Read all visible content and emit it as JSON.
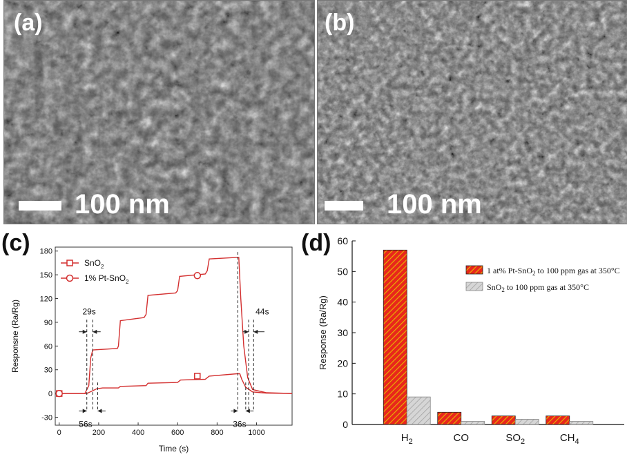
{
  "panels": {
    "a": {
      "label": "(a)",
      "scale": "100 nm"
    },
    "b": {
      "label": "(b)",
      "scale": "100 nm"
    },
    "c": {
      "label": "(c)"
    },
    "d": {
      "label": "(d)"
    }
  },
  "chart_data": [
    {
      "type": "line",
      "xlabel": "Time (s)",
      "ylabel": "Responsne (Ra/Rg)",
      "xlim": [
        -20,
        1180
      ],
      "ylim": [
        -40,
        185
      ],
      "xticks": [
        0,
        200,
        400,
        600,
        800,
        1000
      ],
      "yticks": [
        -30,
        0,
        30,
        60,
        90,
        120,
        150,
        180
      ],
      "series": [
        {
          "name": "SnO2",
          "color": "#d32f2f",
          "marker": "square",
          "points": [
            [
              0,
              0
            ],
            [
              140,
              0
            ],
            [
              165,
              3
            ],
            [
              190,
              6
            ],
            [
              220,
              7
            ],
            [
              300,
              7
            ],
            [
              310,
              9
            ],
            [
              440,
              10
            ],
            [
              450,
              13
            ],
            [
              600,
              14
            ],
            [
              615,
              17
            ],
            [
              740,
              18
            ],
            [
              760,
              22
            ],
            [
              900,
              25
            ],
            [
              915,
              25
            ],
            [
              925,
              18
            ],
            [
              945,
              8
            ],
            [
              980,
              2
            ],
            [
              1050,
              0.5
            ],
            [
              1180,
              0
            ]
          ]
        },
        {
          "name": "1% Pt-SnO2",
          "color": "#d32f2f",
          "marker": "circle",
          "points": [
            [
              0,
              0
            ],
            [
              130,
              0
            ],
            [
              150,
              10
            ],
            [
              160,
              45
            ],
            [
              170,
              55
            ],
            [
              295,
              57
            ],
            [
              300,
              60
            ],
            [
              310,
              92
            ],
            [
              430,
              96
            ],
            [
              440,
              100
            ],
            [
              450,
              124
            ],
            [
              590,
              127
            ],
            [
              600,
              130
            ],
            [
              610,
              148
            ],
            [
              740,
              151
            ],
            [
              750,
              155
            ],
            [
              760,
              170
            ],
            [
              900,
              172
            ],
            [
              910,
              172
            ],
            [
              920,
              120
            ],
            [
              935,
              60
            ],
            [
              955,
              20
            ],
            [
              980,
              5
            ],
            [
              1050,
              1
            ],
            [
              1180,
              0
            ]
          ]
        }
      ],
      "annotations": {
        "t1": "29s",
        "t2": "56s",
        "t3": "44s",
        "t4": "36s"
      },
      "legend": {
        "s1_main": "SnO",
        "s1_sub": "2",
        "s2_main": "1% Pt-SnO",
        "s2_sub": "2"
      }
    },
    {
      "type": "bar",
      "ylabel": "Response (Ra/Rg)",
      "ylim": [
        0,
        60
      ],
      "yticks": [
        0,
        10,
        20,
        30,
        40,
        50,
        60
      ],
      "categories": [
        "H2",
        "CO",
        "SO2",
        "CH4"
      ],
      "category_parts": [
        {
          "main": "H",
          "sub": "2"
        },
        {
          "main": "CO",
          "sub": ""
        },
        {
          "main": "SO",
          "sub": "2"
        },
        {
          "main": "CH",
          "sub": "4"
        }
      ],
      "series": [
        {
          "name": "1 at% Pt-SnO2 to 100 ppm gas at 350°C",
          "color": "#e8271b",
          "hatch": "#e8b800",
          "values": [
            57,
            4,
            2.8,
            2.8
          ]
        },
        {
          "name": "SnO2 to 100 ppm gas at 350°C",
          "color": "#cfcfcf",
          "hatch": "#9a9a9a",
          "values": [
            9,
            1,
            1.7,
            1
          ]
        }
      ],
      "legend_text": {
        "l1_a": "1 at% Pt-SnO",
        "l1_sub": "2",
        "l1_b": " to 100 ppm gas at 350°C",
        "l2_a": "SnO",
        "l2_sub": "2",
        "l2_b": " to 100 ppm gas at 350°C"
      },
      "legend": "top-right"
    }
  ]
}
